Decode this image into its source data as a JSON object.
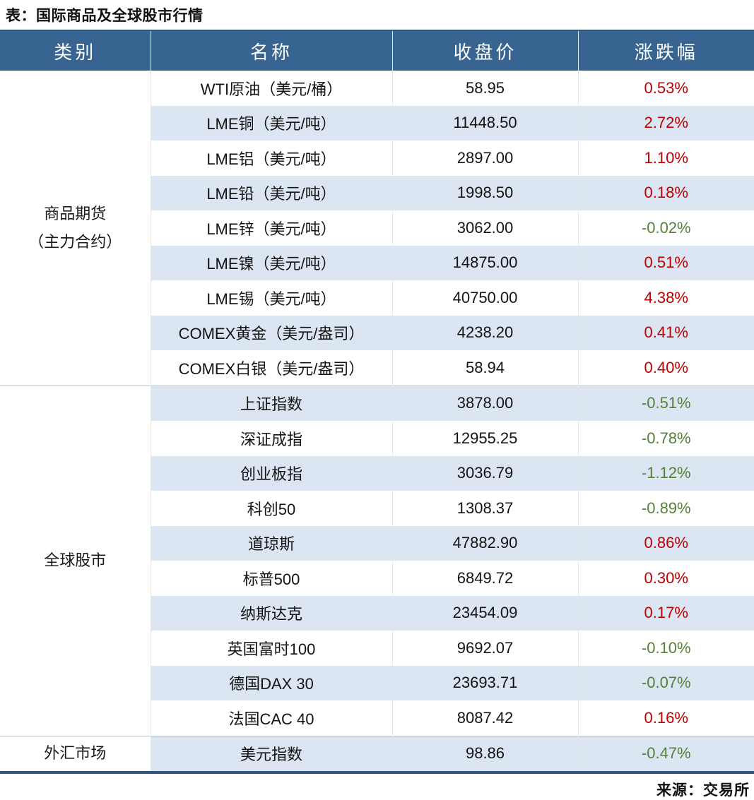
{
  "page": {
    "title": "表：国际商品及全球股市行情",
    "source": "来源：交易所"
  },
  "colors": {
    "header_bg": "#386492",
    "stripe_bg": "#dce6f2",
    "positive": "#c00000",
    "negative": "#548235",
    "bottom_border": "#31567f"
  },
  "table": {
    "headers": [
      "类别",
      "名称",
      "收盘价",
      "涨跌幅"
    ],
    "groups": [
      {
        "category": "商品期货（主力合约）",
        "category_lines": [
          "商品期货",
          "（主力合约）"
        ],
        "rows": [
          {
            "name": "WTI原油（美元/桶）",
            "close": "58.95",
            "change": "0.53%"
          },
          {
            "name": "LME铜（美元/吨）",
            "close": "11448.50",
            "change": "2.72%"
          },
          {
            "name": "LME铝（美元/吨）",
            "close": "2897.00",
            "change": "1.10%"
          },
          {
            "name": "LME铅（美元/吨）",
            "close": "1998.50",
            "change": "0.18%"
          },
          {
            "name": "LME锌（美元/吨）",
            "close": "3062.00",
            "change": "-0.02%"
          },
          {
            "name": "LME镍（美元/吨）",
            "close": "14875.00",
            "change": "0.51%"
          },
          {
            "name": "LME锡（美元/吨）",
            "close": "40750.00",
            "change": "4.38%"
          },
          {
            "name": "COMEX黄金（美元/盎司）",
            "close": "4238.20",
            "change": "0.41%"
          },
          {
            "name": "COMEX白银（美元/盎司）",
            "close": "58.94",
            "change": "0.40%"
          }
        ]
      },
      {
        "category": "全球股市",
        "category_lines": [
          "全球股市"
        ],
        "rows": [
          {
            "name": "上证指数",
            "close": "3878.00",
            "change": "-0.51%"
          },
          {
            "name": "深证成指",
            "close": "12955.25",
            "change": "-0.78%"
          },
          {
            "name": "创业板指",
            "close": "3036.79",
            "change": "-1.12%"
          },
          {
            "name": "科创50",
            "close": "1308.37",
            "change": "-0.89%"
          },
          {
            "name": "道琼斯",
            "close": "47882.90",
            "change": "0.86%"
          },
          {
            "name": "标普500",
            "close": "6849.72",
            "change": "0.30%"
          },
          {
            "name": "纳斯达克",
            "close": "23454.09",
            "change": "0.17%"
          },
          {
            "name": "英国富时100",
            "close": "9692.07",
            "change": "-0.10%"
          },
          {
            "name": "德国DAX 30",
            "close": "23693.71",
            "change": "-0.07%"
          },
          {
            "name": "法国CAC 40",
            "close": "8087.42",
            "change": "0.16%"
          }
        ]
      },
      {
        "category": "外汇市场",
        "category_lines": [
          "外汇市场"
        ],
        "rows": [
          {
            "name": "美元指数",
            "close": "98.86",
            "change": "-0.47%"
          }
        ]
      }
    ]
  }
}
